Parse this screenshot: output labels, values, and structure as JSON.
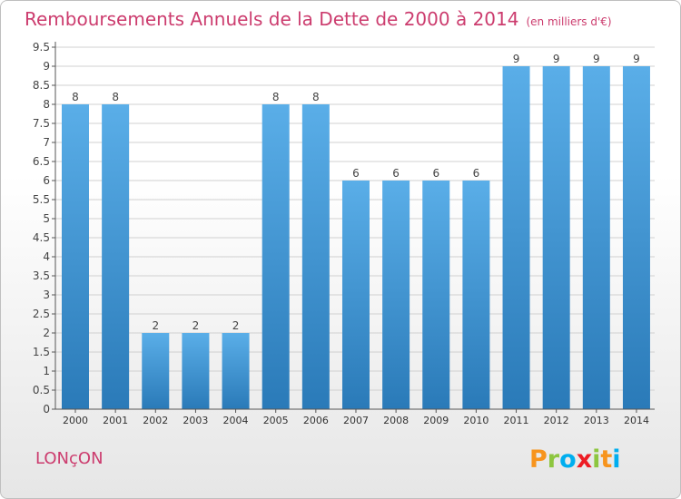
{
  "chart_data": {
    "type": "bar",
    "title": "Remboursements Annuels de la Dette de 2000 à 2014",
    "subtitle": "(en milliers d'€)",
    "categories": [
      "2000",
      "2001",
      "2002",
      "2003",
      "2004",
      "2005",
      "2006",
      "2007",
      "2008",
      "2009",
      "2010",
      "2011",
      "2012",
      "2013",
      "2014"
    ],
    "values": [
      8,
      8,
      2,
      2,
      2,
      8,
      8,
      6,
      6,
      6,
      6,
      9,
      9,
      9,
      9
    ],
    "data_labels": [
      "8",
      "8",
      "2",
      "2",
      "2",
      "8",
      "8",
      "6",
      "6",
      "6",
      "6",
      "9",
      "9",
      "9",
      "9"
    ],
    "y_ticks": [
      0,
      0.5,
      1,
      1.5,
      2,
      2.5,
      3,
      3.5,
      4,
      4.5,
      5,
      5.5,
      6,
      6.5,
      7,
      7.5,
      8,
      8.5,
      9,
      9.5
    ],
    "y_tick_labels": [
      "0",
      "0.5",
      "1",
      "1.5",
      "2",
      "2.5",
      "3",
      "3.5",
      "4",
      "4.5",
      "5",
      "5.5",
      "6",
      "6.5",
      "7",
      "7.5",
      "8",
      "8.5",
      "9",
      "9.5"
    ],
    "ylim": [
      0,
      9.5
    ],
    "xlabel": "",
    "ylabel": "",
    "grid": true,
    "bar_color_top": "#5aaee8",
    "bar_color_bottom": "#2a7ab8"
  },
  "footer": {
    "town": "LONçON",
    "brand_letters": [
      "P",
      "r",
      "o",
      "x",
      "i",
      "t",
      "i"
    ],
    "brand_colors": [
      "#f7941d",
      "#8dc63f",
      "#00aeef",
      "#ed1c24",
      "#8dc63f",
      "#f7941d",
      "#00aeef"
    ]
  },
  "colors": {
    "accent": "#cc3c6e",
    "grid": "#d0d0d0",
    "axis": "#555555"
  }
}
